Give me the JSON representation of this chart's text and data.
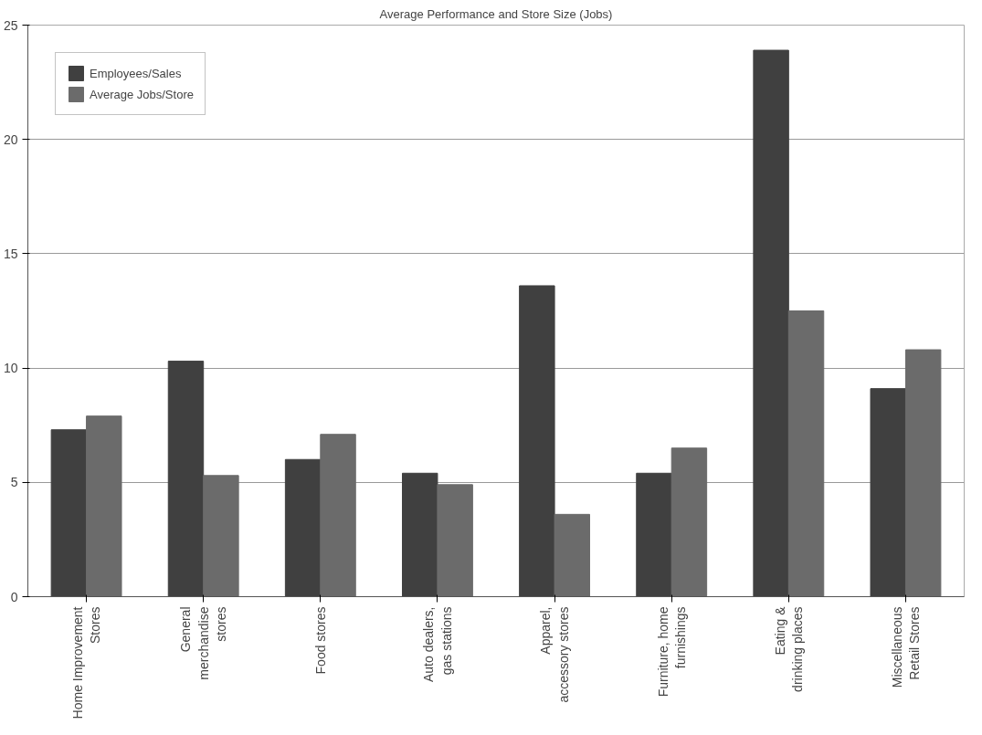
{
  "chart_data": {
    "type": "bar",
    "title": "Average Performance and Store Size (Jobs)",
    "categories": [
      "Home Improvement Stores",
      "General merchandise stores",
      "Food stores",
      "Auto dealers, gas stations",
      "Apparel, accessory stores",
      "Furniture, home furnishings",
      "Eating & drinking places",
      "Miscellaneous Retail Stores"
    ],
    "series": [
      {
        "name": "Employees/Sales",
        "color": "#404040",
        "values": [
          7.3,
          10.3,
          6.0,
          5.4,
          13.6,
          5.4,
          23.9,
          9.1
        ]
      },
      {
        "name": "Average Jobs/Store",
        "color": "#6b6b6b",
        "values": [
          7.9,
          5.3,
          7.1,
          4.9,
          3.6,
          6.5,
          12.5,
          10.8
        ]
      }
    ],
    "ylim": [
      0,
      25
    ],
    "yticks": [
      0,
      5,
      10,
      15,
      20,
      25
    ],
    "grid": "y",
    "legend": "top left"
  }
}
